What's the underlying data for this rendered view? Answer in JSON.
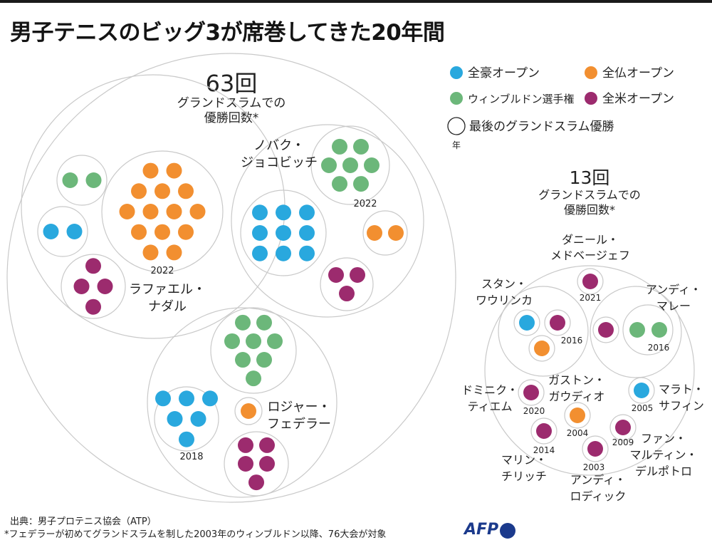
{
  "title": "男子テニスのビッグ3が席巻してきた20年間",
  "colors": {
    "aus": "#29a8de",
    "fr": "#f28f30",
    "wim": "#6cb77a",
    "us": "#9c2b6e",
    "ring": "#c9c9c9",
    "afp": "#1b3a8c"
  },
  "legend": {
    "aus": "全豪オープン",
    "fr": "全仏オープン",
    "wim": "ウィンブルドン選手権",
    "us": "全米オープン",
    "last_line1": "最後のグランドスラム優勝",
    "last_line2": "年"
  },
  "big3_total": {
    "count": "63回",
    "line1": "グランドスラムでの",
    "line2": "優勝回数*"
  },
  "others_total": {
    "count": "13回",
    "line1": "グランドスラムでの",
    "line2": "優勝回数*"
  },
  "chart_data": {
    "type": "bubble-cluster",
    "title": "男子テニスのビッグ3が席巻してきた20年間",
    "unit": "グランドスラム優勝回数",
    "groups": [
      {
        "group": "big3",
        "total": 63,
        "players": [
          {
            "name_line1": "ラファエル・",
            "name_line2": "ナダル",
            "aus": 2,
            "fr": 14,
            "wim": 2,
            "us": 4,
            "last_win": "2022"
          },
          {
            "name_line1": "ノバク・",
            "name_line2": "ジョコビッチ",
            "aus": 9,
            "fr": 2,
            "wim": 7,
            "us": 3,
            "last_win": "2022"
          },
          {
            "name_line1": "ロジャー・",
            "name_line2": "フェデラー",
            "aus": 6,
            "fr": 1,
            "wim": 8,
            "us": 5,
            "last_win": "2018"
          }
        ]
      },
      {
        "group": "others",
        "total": 13,
        "players": [
          {
            "name_line1": "ダニール・",
            "name_line2": "メドベージェフ",
            "aus": 0,
            "fr": 0,
            "wim": 0,
            "us": 1,
            "last_win": "2021"
          },
          {
            "name_line1": "スタン・",
            "name_line2": "ワウリンカ",
            "aus": 1,
            "fr": 1,
            "wim": 0,
            "us": 1,
            "last_win": "2016"
          },
          {
            "name_line1": "アンディ・",
            "name_line2": "マレー",
            "aus": 0,
            "fr": 0,
            "wim": 2,
            "us": 1,
            "last_win": "2016"
          },
          {
            "name_line1": "ドミニク・",
            "name_line2": "ティエム",
            "aus": 0,
            "fr": 0,
            "wim": 0,
            "us": 1,
            "last_win": "2020"
          },
          {
            "name_line1": "ガストン・",
            "name_line2": "ガウディオ",
            "aus": 0,
            "fr": 1,
            "wim": 0,
            "us": 0,
            "last_win": "2004"
          },
          {
            "name_line1": "マラト・",
            "name_line2": "サフィン",
            "aus": 1,
            "fr": 0,
            "wim": 0,
            "us": 0,
            "last_win": "2005"
          },
          {
            "name_line1": "マリン・",
            "name_line2": "チリッチ",
            "aus": 0,
            "fr": 0,
            "wim": 0,
            "us": 1,
            "last_win": "2014"
          },
          {
            "name_line1": "ファン・",
            "name_line2": "マルティン・",
            "name_line3": "デルポトロ",
            "aus": 0,
            "fr": 0,
            "wim": 0,
            "us": 1,
            "last_win": "2009"
          },
          {
            "name_line1": "アンディ・",
            "name_line2": "ロディック",
            "aus": 0,
            "fr": 0,
            "wim": 0,
            "us": 1,
            "last_win": "2003"
          }
        ]
      }
    ]
  },
  "footer": {
    "source": "出典：男子プロテニス協会（ATP）",
    "note": "*フェデラーが初めてグランドスラムを制した2003年のウィンブルドン以降、76大会が対象"
  },
  "brand": "AFP"
}
